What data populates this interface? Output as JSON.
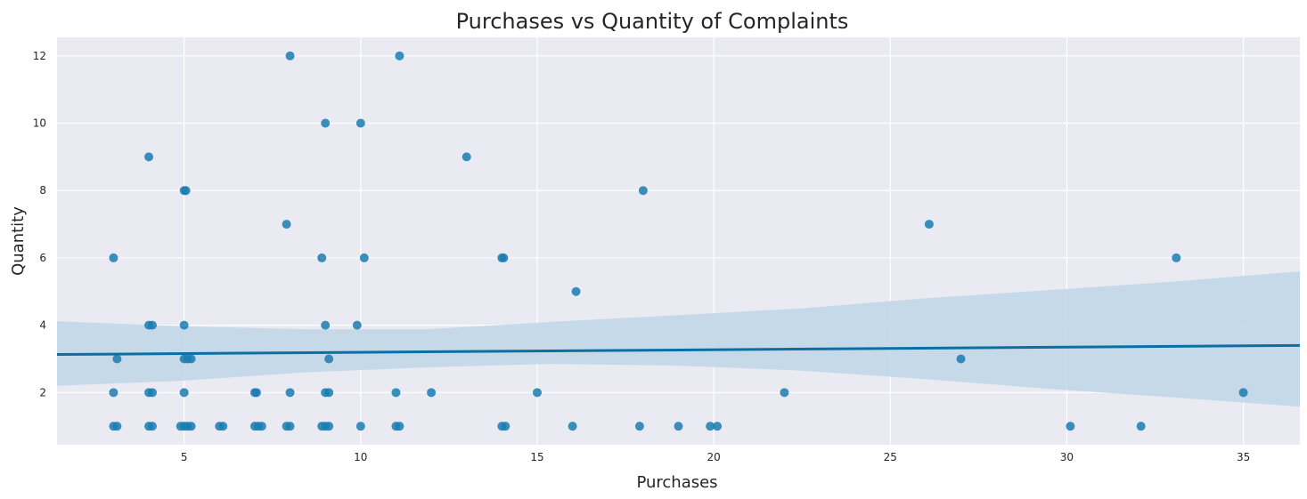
{
  "chart_data": {
    "type": "scatter",
    "title": "Purchases vs Quantity of Complaints",
    "xlabel": "Purchases",
    "ylabel": "Quantity",
    "xlim": [
      1.4,
      36.6
    ],
    "ylim": [
      0.45,
      12.55
    ],
    "xticks": [
      5,
      10,
      15,
      20,
      25,
      30,
      35
    ],
    "yticks": [
      2,
      4,
      6,
      8,
      10,
      12
    ],
    "grid": true,
    "point_color": "#1a7db0",
    "line_color": "#0b6fa4",
    "ci_color": "#c2d7e8",
    "regression": {
      "x": [
        1.4,
        36.6
      ],
      "y": [
        3.13,
        3.4
      ],
      "ci_lower": [
        2.2,
        2.35,
        2.6,
        2.75,
        2.85,
        2.8,
        2.65,
        2.4,
        2.1,
        1.85,
        1.58
      ],
      "ci_upper": [
        4.12,
        3.97,
        3.88,
        3.88,
        4.1,
        4.3,
        4.5,
        4.8,
        5.05,
        5.3,
        5.6
      ],
      "ci_x": [
        1.4,
        4.9,
        8.4,
        11.9,
        15.4,
        19.0,
        22.5,
        26.0,
        29.6,
        33.1,
        36.6
      ]
    },
    "points": [
      {
        "x": 3,
        "y": 6
      },
      {
        "x": 3,
        "y": 2
      },
      {
        "x": 3,
        "y": 1
      },
      {
        "x": 3.1,
        "y": 1
      },
      {
        "x": 3.1,
        "y": 3
      },
      {
        "x": 4,
        "y": 9
      },
      {
        "x": 4,
        "y": 4
      },
      {
        "x": 4.1,
        "y": 4
      },
      {
        "x": 4,
        "y": 2
      },
      {
        "x": 4.1,
        "y": 2
      },
      {
        "x": 4,
        "y": 1
      },
      {
        "x": 4.1,
        "y": 1
      },
      {
        "x": 5,
        "y": 8
      },
      {
        "x": 5.05,
        "y": 8
      },
      {
        "x": 5,
        "y": 4
      },
      {
        "x": 5,
        "y": 3
      },
      {
        "x": 5.1,
        "y": 3
      },
      {
        "x": 5.2,
        "y": 3
      },
      {
        "x": 5,
        "y": 2
      },
      {
        "x": 4.9,
        "y": 1
      },
      {
        "x": 5,
        "y": 1
      },
      {
        "x": 5.1,
        "y": 1
      },
      {
        "x": 5.2,
        "y": 1
      },
      {
        "x": 6,
        "y": 1
      },
      {
        "x": 6.1,
        "y": 1
      },
      {
        "x": 7,
        "y": 2
      },
      {
        "x": 7.05,
        "y": 2
      },
      {
        "x": 7,
        "y": 1
      },
      {
        "x": 7.1,
        "y": 1
      },
      {
        "x": 7.2,
        "y": 1
      },
      {
        "x": 8,
        "y": 12
      },
      {
        "x": 7.9,
        "y": 7
      },
      {
        "x": 8,
        "y": 2
      },
      {
        "x": 7.9,
        "y": 1
      },
      {
        "x": 8,
        "y": 1
      },
      {
        "x": 9,
        "y": 10
      },
      {
        "x": 8.9,
        "y": 6
      },
      {
        "x": 9,
        "y": 4
      },
      {
        "x": 9.1,
        "y": 3
      },
      {
        "x": 9,
        "y": 2
      },
      {
        "x": 9.1,
        "y": 2
      },
      {
        "x": 8.9,
        "y": 1
      },
      {
        "x": 9,
        "y": 1
      },
      {
        "x": 9.1,
        "y": 1
      },
      {
        "x": 10,
        "y": 10
      },
      {
        "x": 10.1,
        "y": 6
      },
      {
        "x": 9.9,
        "y": 4
      },
      {
        "x": 10,
        "y": 1
      },
      {
        "x": 11.1,
        "y": 12
      },
      {
        "x": 11,
        "y": 2
      },
      {
        "x": 11,
        "y": 1
      },
      {
        "x": 11.1,
        "y": 1
      },
      {
        "x": 12,
        "y": 2
      },
      {
        "x": 13,
        "y": 9
      },
      {
        "x": 14,
        "y": 6
      },
      {
        "x": 14.05,
        "y": 6
      },
      {
        "x": 14,
        "y": 1
      },
      {
        "x": 14.1,
        "y": 1
      },
      {
        "x": 15,
        "y": 2
      },
      {
        "x": 16.1,
        "y": 5
      },
      {
        "x": 16,
        "y": 1
      },
      {
        "x": 18,
        "y": 8
      },
      {
        "x": 17.9,
        "y": 1
      },
      {
        "x": 19,
        "y": 1
      },
      {
        "x": 19.9,
        "y": 1
      },
      {
        "x": 20.1,
        "y": 1
      },
      {
        "x": 22,
        "y": 2
      },
      {
        "x": 26.1,
        "y": 7
      },
      {
        "x": 27,
        "y": 3
      },
      {
        "x": 30.1,
        "y": 1
      },
      {
        "x": 32.1,
        "y": 1
      },
      {
        "x": 33.1,
        "y": 6
      },
      {
        "x": 35,
        "y": 2
      }
    ]
  }
}
